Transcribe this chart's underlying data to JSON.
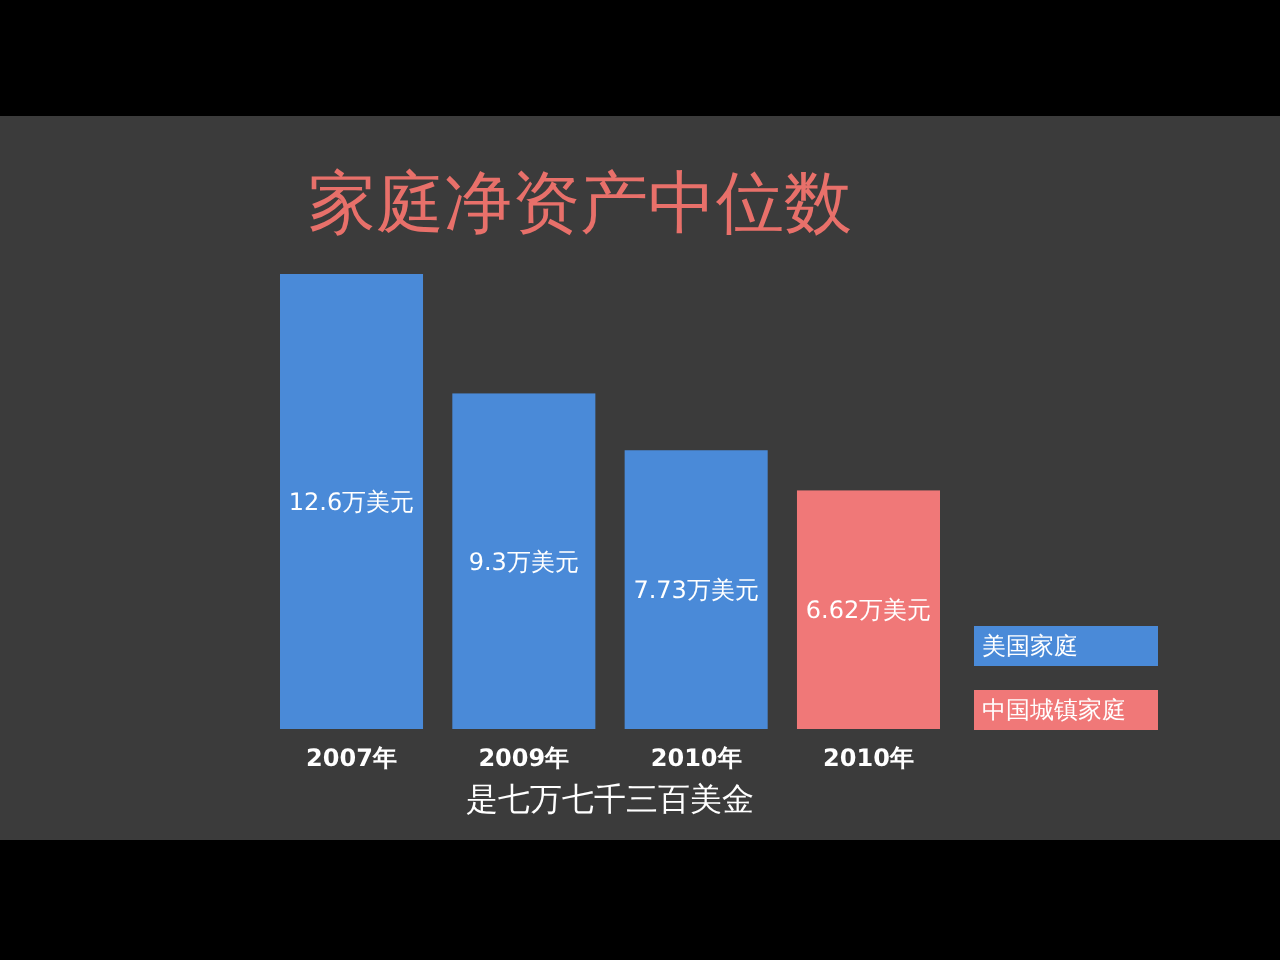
{
  "chart_data": {
    "type": "bar",
    "title": "家庭净资产中位数",
    "categories": [
      "2007年",
      "2009年",
      "2010年",
      "2010年"
    ],
    "series": [
      {
        "name": "美国家庭",
        "color": "#4a8ad8",
        "values": [
          12.6,
          9.3,
          7.73,
          null
        ],
        "value_labels": [
          "12.6万美元",
          "9.3万美元",
          "7.73万美元",
          null
        ]
      },
      {
        "name": "中国城镇家庭",
        "color": "#f07878",
        "values": [
          null,
          null,
          null,
          6.62
        ],
        "value_labels": [
          null,
          null,
          null,
          "6.62万美元"
        ]
      }
    ],
    "annotations": [
      "是七万七千三百美金"
    ],
    "legend": "right",
    "grid": false
  }
}
